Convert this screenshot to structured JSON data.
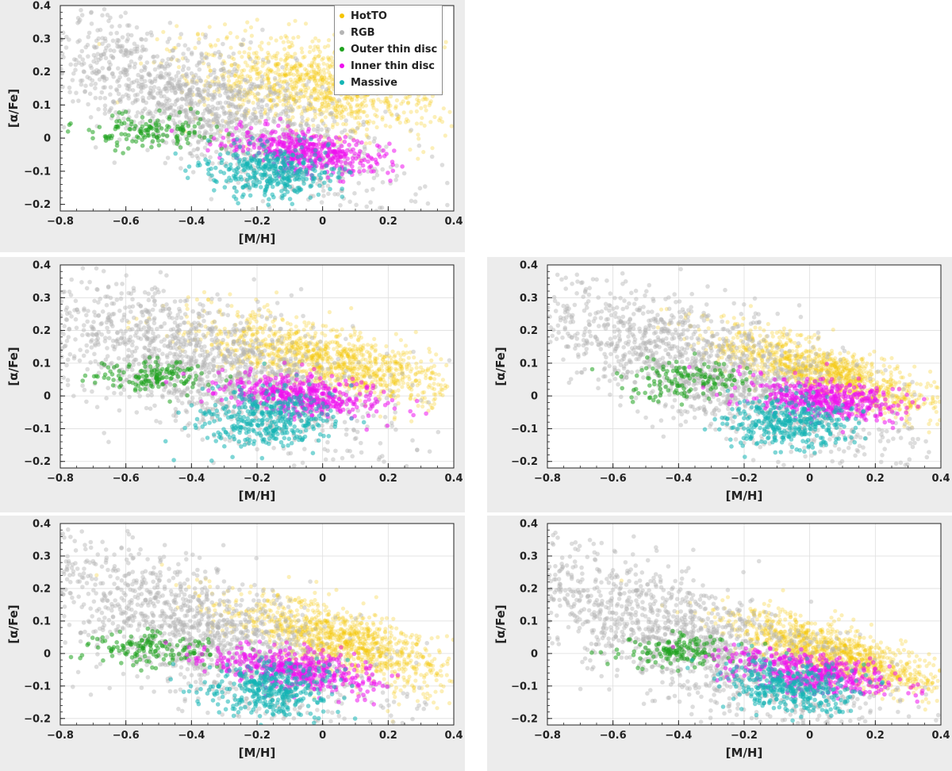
{
  "chart_data": [
    {
      "type": "scatter",
      "panel": "top-left",
      "xlabel": "[M/H]",
      "ylabel": "[α/Fe]",
      "xlim": [
        -0.8,
        0.4
      ],
      "ylim": [
        -0.22,
        0.4
      ],
      "xticks": [
        "−0.8",
        "−0.6",
        "−0.4",
        "−0.2",
        "0",
        "0.2",
        "0.4"
      ],
      "yticks": [
        "−0.2",
        "−0.1",
        "0",
        "0.1",
        "0.2",
        "0.3",
        "0.4"
      ],
      "grid": false,
      "legend_position": "top-right",
      "series": [
        {
          "name": "HotTO",
          "color": "#f5c400",
          "center": [
            -0.02,
            0.16
          ],
          "spread": [
            0.19,
            0.07
          ],
          "tilt": -0.1
        },
        {
          "name": "RGB",
          "color": "#b4b4b4",
          "center": [
            -0.35,
            0.09
          ],
          "spread": [
            0.28,
            0.09
          ],
          "tilt": -0.38
        },
        {
          "name": "Outer thin disc",
          "color": "#1fa21f",
          "center": [
            -0.52,
            0.02
          ],
          "spread": [
            0.1,
            0.025
          ],
          "tilt": 0
        },
        {
          "name": "Inner thin disc",
          "color": "#ee10ee",
          "center": [
            -0.05,
            -0.04
          ],
          "spread": [
            0.12,
            0.03
          ],
          "tilt": -0.12
        },
        {
          "name": "Massive",
          "color": "#14b4b4",
          "center": [
            -0.16,
            -0.1
          ],
          "spread": [
            0.1,
            0.04
          ],
          "tilt": 0
        }
      ]
    },
    {
      "type": "scatter",
      "panel": "middle-left",
      "xlabel": "[M/H]",
      "ylabel": "[α/Fe]",
      "xlim": [
        -0.8,
        0.4
      ],
      "ylim": [
        -0.22,
        0.4
      ],
      "xticks": [
        "−0.8",
        "−0.6",
        "−0.4",
        "−0.2",
        "0",
        "0.2",
        "0.4"
      ],
      "yticks": [
        "−0.2",
        "−0.1",
        "0",
        "0.1",
        "0.2",
        "0.3",
        "0.4"
      ],
      "grid": true,
      "series": [
        {
          "name": "HotTO",
          "color": "#f5c400",
          "center": [
            0.02,
            0.11
          ],
          "spread": [
            0.2,
            0.05
          ],
          "tilt": -0.22
        },
        {
          "name": "RGB",
          "color": "#b4b4b4",
          "center": [
            -0.36,
            0.1
          ],
          "spread": [
            0.27,
            0.1
          ],
          "tilt": -0.3
        },
        {
          "name": "Outer thin disc",
          "color": "#1fa21f",
          "center": [
            -0.5,
            0.06
          ],
          "spread": [
            0.1,
            0.025
          ],
          "tilt": 0
        },
        {
          "name": "Inner thin disc",
          "color": "#ee10ee",
          "center": [
            -0.07,
            0.0
          ],
          "spread": [
            0.13,
            0.03
          ],
          "tilt": -0.1
        },
        {
          "name": "Massive",
          "color": "#14b4b4",
          "center": [
            -0.17,
            -0.07
          ],
          "spread": [
            0.1,
            0.045
          ],
          "tilt": 0
        }
      ]
    },
    {
      "type": "scatter",
      "panel": "middle-right",
      "xlabel": "[M/H]",
      "ylabel": "[α/Fe]",
      "xlim": [
        -0.8,
        0.4
      ],
      "ylim": [
        -0.22,
        0.4
      ],
      "xticks": [
        "−0.8",
        "−0.6",
        "−0.4",
        "−0.2",
        "0",
        "0.2",
        "0.4"
      ],
      "yticks": [
        "−0.2",
        "−0.1",
        "0",
        "0.1",
        "0.2",
        "0.3",
        "0.4"
      ],
      "grid": true,
      "series": [
        {
          "name": "HotTO",
          "color": "#f5c400",
          "center": [
            0.05,
            0.07
          ],
          "spread": [
            0.18,
            0.04
          ],
          "tilt": -0.3
        },
        {
          "name": "RGB",
          "color": "#b4b4b4",
          "center": [
            -0.3,
            0.08
          ],
          "spread": [
            0.3,
            0.09
          ],
          "tilt": -0.33
        },
        {
          "name": "Outer thin disc",
          "color": "#1fa21f",
          "center": [
            -0.37,
            0.05
          ],
          "spread": [
            0.1,
            0.03
          ],
          "tilt": 0
        },
        {
          "name": "Inner thin disc",
          "color": "#ee10ee",
          "center": [
            0.05,
            -0.01
          ],
          "spread": [
            0.12,
            0.03
          ],
          "tilt": -0.1
        },
        {
          "name": "Massive",
          "color": "#14b4b4",
          "center": [
            -0.06,
            -0.08
          ],
          "spread": [
            0.1,
            0.04
          ],
          "tilt": 0
        }
      ]
    },
    {
      "type": "scatter",
      "panel": "bottom-left",
      "xlabel": "[M/H]",
      "ylabel": "[α/Fe]",
      "xlim": [
        -0.8,
        0.4
      ],
      "ylim": [
        -0.22,
        0.4
      ],
      "xticks": [
        "−0.8",
        "−0.6",
        "−0.4",
        "−0.2",
        "0",
        "0.2",
        "0.4"
      ],
      "yticks": [
        "−0.2",
        "−0.1",
        "0",
        "0.1",
        "0.2",
        "0.3",
        "0.4"
      ],
      "grid": true,
      "series": [
        {
          "name": "HotTO",
          "color": "#f5c400",
          "center": [
            0.05,
            0.04
          ],
          "spread": [
            0.18,
            0.05
          ],
          "tilt": -0.3
        },
        {
          "name": "RGB",
          "color": "#b4b4b4",
          "center": [
            -0.37,
            0.06
          ],
          "spread": [
            0.28,
            0.1
          ],
          "tilt": -0.38
        },
        {
          "name": "Outer thin disc",
          "color": "#1fa21f",
          "center": [
            -0.52,
            0.01
          ],
          "spread": [
            0.1,
            0.025
          ],
          "tilt": 0
        },
        {
          "name": "Inner thin disc",
          "color": "#ee10ee",
          "center": [
            -0.08,
            -0.05
          ],
          "spread": [
            0.13,
            0.03
          ],
          "tilt": -0.12
        },
        {
          "name": "Massive",
          "color": "#14b4b4",
          "center": [
            -0.16,
            -0.11
          ],
          "spread": [
            0.1,
            0.04
          ],
          "tilt": 0
        }
      ]
    },
    {
      "type": "scatter",
      "panel": "bottom-right",
      "xlabel": "[M/H]",
      "ylabel": "[α/Fe]",
      "xlim": [
        -0.8,
        0.4
      ],
      "ylim": [
        -0.22,
        0.4
      ],
      "xticks": [
        "−0.8",
        "−0.6",
        "−0.4",
        "−0.2",
        "0",
        "0.2",
        "0.4"
      ],
      "yticks": [
        "−0.2",
        "−0.1",
        "0",
        "0.1",
        "0.2",
        "0.3",
        "0.4"
      ],
      "grid": true,
      "series": [
        {
          "name": "HotTO",
          "color": "#f5c400",
          "center": [
            0.08,
            0.0
          ],
          "spread": [
            0.16,
            0.04
          ],
          "tilt": -0.3
        },
        {
          "name": "RGB",
          "color": "#b4b4b4",
          "center": [
            -0.35,
            0.04
          ],
          "spread": [
            0.3,
            0.09
          ],
          "tilt": -0.36
        },
        {
          "name": "Outer thin disc",
          "color": "#1fa21f",
          "center": [
            -0.4,
            0.01
          ],
          "spread": [
            0.09,
            0.025
          ],
          "tilt": 0
        },
        {
          "name": "Inner thin disc",
          "color": "#ee10ee",
          "center": [
            0.0,
            -0.06
          ],
          "spread": [
            0.13,
            0.03
          ],
          "tilt": -0.15
        },
        {
          "name": "Massive",
          "color": "#14b4b4",
          "center": [
            -0.06,
            -0.1
          ],
          "spread": [
            0.1,
            0.04
          ],
          "tilt": -0.1
        }
      ]
    }
  ]
}
